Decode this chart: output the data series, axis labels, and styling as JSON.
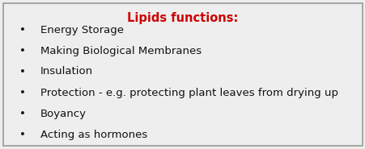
{
  "title": "Lipids functions:",
  "title_color": "#cc0000",
  "title_fontsize": 10.5,
  "title_bold": true,
  "bullet_items": [
    "Energy Storage",
    "Making Biological Membranes",
    "Insulation",
    "Protection - e.g. protecting plant leaves from drying up",
    "Boyancy",
    "Acting as hormones"
  ],
  "bullet_fontsize": 9.5,
  "bullet_color": "#111111",
  "background_color": "#eeeeee",
  "border_color": "#999999",
  "fig_width": 4.52,
  "fig_height": 1.85,
  "dpi": 100
}
